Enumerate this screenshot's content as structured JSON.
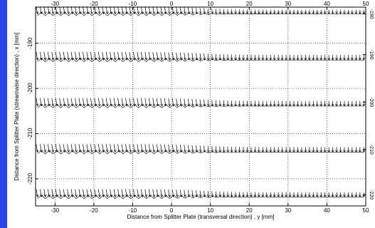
{
  "colors": {
    "left_bar": "#2a45e6",
    "axis": "#000000",
    "grid": "#000000",
    "vectors": "#000000",
    "background": "#ffffff"
  },
  "chart_data": {
    "type": "vector-field",
    "xlabel": "Distance from Splitter Plate (transversal direction) , y [mm]",
    "ylabel": "Distance from Splitter Plate (streamwise direction) , x [mm]",
    "xlim": [
      -35,
      50
    ],
    "ylim": [
      -226,
      -182
    ],
    "x_ticks": [
      -30,
      -20,
      -10,
      0,
      10,
      20,
      30,
      40,
      50
    ],
    "x_tick_labels": [
      "-30",
      "-20",
      "-10",
      "0",
      "10",
      "20",
      "30",
      "40",
      "50"
    ],
    "y_ticks": [
      -190,
      -200,
      -210,
      -220
    ],
    "y_tick_labels": [
      "-190",
      "-200",
      "-210",
      "-220"
    ],
    "right_tick_labels": [
      "-190",
      "-190",
      "-200",
      "-210",
      "-220"
    ],
    "grid": true,
    "arrow_spacing_y_mm": 1.0,
    "rows": [
      {
        "x_base": -183.5,
        "peak_length_mm": 9.5,
        "trough_length_mm": 5.2,
        "pos_start": -0.5
      },
      {
        "x_base": -193.7,
        "peak_length_mm": 10.2,
        "trough_length_mm": 6.4,
        "pos_start": -5.0
      },
      {
        "x_base": -203.9,
        "peak_length_mm": 10.2,
        "trough_length_mm": 6.4,
        "pos_start": -3.0
      },
      {
        "x_base": -214.1,
        "peak_length_mm": 10.2,
        "trough_length_mm": 6.4,
        "pos_start": -3.5
      },
      {
        "x_base": -224.0,
        "peak_length_mm": 9.8,
        "trough_length_mm": 5.8,
        "pos_start": 1.0
      }
    ],
    "velocity_profile": {
      "left_level": "long",
      "right_level": "short",
      "transition_center_y": 8,
      "transition_width_y": 4
    }
  }
}
